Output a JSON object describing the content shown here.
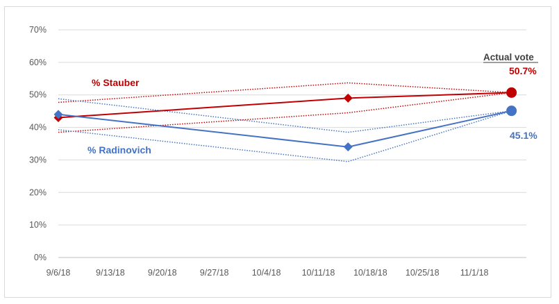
{
  "chart_data": {
    "type": "line",
    "x_axis": {
      "ticks": [
        "9/6/18",
        "9/13/18",
        "9/20/18",
        "9/27/18",
        "10/4/18",
        "10/11/18",
        "10/18/18",
        "10/25/18",
        "11/1/18"
      ],
      "range": [
        "2018-09-06",
        "2018-11-08"
      ]
    },
    "y_axis": {
      "ticks": [
        "0%",
        "10%",
        "20%",
        "30%",
        "40%",
        "50%",
        "60%",
        "70%"
      ],
      "range": [
        0,
        70
      ],
      "gridlines": true
    },
    "series": [
      {
        "name": "% Stauber",
        "color": "#c00000",
        "points": [
          {
            "x": "2018-09-06",
            "y": 43.0
          },
          {
            "x": "2018-10-15",
            "y": 49.0
          },
          {
            "x": "2018-11-06",
            "y": 50.7
          }
        ],
        "upper": [
          {
            "x": "2018-09-06",
            "y": 47.7
          },
          {
            "x": "2018-10-15",
            "y": 53.7
          },
          {
            "x": "2018-11-06",
            "y": 50.7
          }
        ],
        "lower": [
          {
            "x": "2018-09-06",
            "y": 38.5
          },
          {
            "x": "2018-10-15",
            "y": 44.5
          },
          {
            "x": "2018-11-06",
            "y": 50.7
          }
        ]
      },
      {
        "name": "% Radinovich",
        "color": "#4472c4",
        "points": [
          {
            "x": "2018-09-06",
            "y": 44.0
          },
          {
            "x": "2018-10-15",
            "y": 34.0
          },
          {
            "x": "2018-11-06",
            "y": 45.1
          }
        ],
        "upper": [
          {
            "x": "2018-09-06",
            "y": 48.8
          },
          {
            "x": "2018-10-15",
            "y": 38.5
          },
          {
            "x": "2018-11-06",
            "y": 45.1
          }
        ],
        "lower": [
          {
            "x": "2018-09-06",
            "y": 39.3
          },
          {
            "x": "2018-10-15",
            "y": 29.5
          },
          {
            "x": "2018-11-06",
            "y": 45.1
          }
        ]
      }
    ],
    "annotations": {
      "actual_vote_title": "Actual vote",
      "stauber_value": "50.7%",
      "radinovich_value": "45.1%"
    }
  }
}
